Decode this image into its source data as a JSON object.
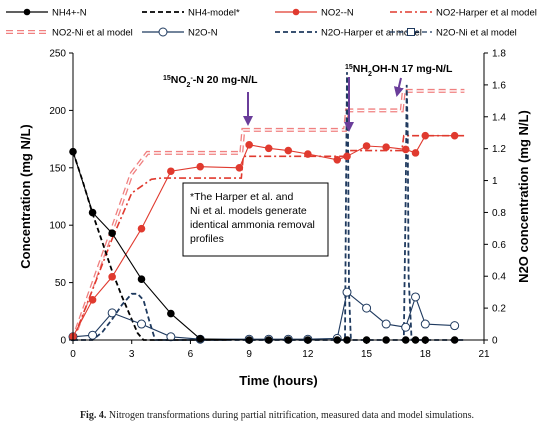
{
  "chart_data": {
    "type": "line",
    "xlabel": "Time (hours)",
    "ylabel": "Concentration (mg N/L)",
    "y2label": "N2O concentration (mg N/L)",
    "xlim": [
      0,
      21
    ],
    "ylim": [
      0,
      250
    ],
    "y2lim": [
      0,
      1.8
    ],
    "xticks": [
      0,
      3,
      6,
      9,
      12,
      15,
      18,
      21
    ],
    "yticks": [
      0,
      50,
      100,
      150,
      200,
      250
    ],
    "y2ticks": [
      0,
      0.2,
      0.4,
      0.6,
      0.8,
      1,
      1.2,
      1.4,
      1.6,
      1.8
    ],
    "y2ticklabels": [
      "0",
      "0.2",
      "0.4",
      "0.6",
      "0.8",
      "1",
      "1.2",
      "1.4",
      "1.6",
      "1.8"
    ],
    "legend_placement": "top",
    "annotations": {
      "no2_label_prefix": "15",
      "no2_label_main": "NO",
      "no2_label_sub": "2",
      "no2_label_sup": "-",
      "no2_label_rest": "-N 20 mg-N/L",
      "nh2oh_label_prefix": "15",
      "nh2oh_label_main": "NH",
      "nh2oh_label_sub": "2",
      "nh2oh_label_rest": "OH-N 17 mg-N/L",
      "note_lines": [
        "*The Harper et al. and",
        "Ni et al. models generate",
        "identical ammonia removal",
        "profiles"
      ]
    },
    "series": [
      {
        "name": "NH4+-N",
        "axis": "left",
        "style": "data-filled-circle",
        "color": "#000000",
        "x": [
          0,
          1,
          2,
          3.5,
          5,
          6.5,
          9,
          10,
          11,
          12,
          13.5,
          14,
          15,
          16,
          17,
          17.5,
          18,
          19.5
        ],
        "y": [
          164,
          111,
          93,
          53,
          23,
          1,
          0,
          0,
          0,
          0,
          0,
          0,
          0,
          0,
          0,
          0,
          0,
          0
        ]
      },
      {
        "name": "NH4-model*",
        "axis": "left",
        "style": "dash",
        "color": "#000000",
        "x": [
          0,
          0.5,
          1,
          1.5,
          2,
          2.5,
          3,
          3.3,
          3.6,
          4,
          5,
          6,
          8
        ],
        "y": [
          164,
          138,
          110,
          85,
          60,
          38,
          18,
          6,
          0,
          0,
          0,
          0,
          0
        ]
      },
      {
        "name": "NO2--N",
        "axis": "left",
        "style": "data-filled-circle",
        "color": "#e03a2f",
        "x": [
          0,
          1,
          2,
          3.5,
          5,
          6.5,
          8.5,
          9,
          10,
          11,
          12,
          13.5,
          14,
          15,
          16,
          17,
          17.5,
          18,
          19.5
        ],
        "y": [
          3,
          35,
          55,
          97,
          147,
          151,
          150,
          170,
          167,
          165,
          162,
          157,
          160,
          169,
          168,
          166,
          163,
          178,
          178
        ]
      },
      {
        "name": "NO2-Harper et al model",
        "axis": "left",
        "style": "dashdot",
        "color": "#e03a2f",
        "x": [
          0,
          1,
          2,
          3,
          4,
          4.5,
          8.6,
          8.7,
          13.9,
          14,
          16.8,
          16.9,
          20
        ],
        "y": [
          0,
          44,
          88,
          128,
          140,
          141,
          141,
          160,
          160,
          165,
          165,
          178,
          178
        ]
      },
      {
        "name": "NO2-Ni et al model",
        "axis": "left",
        "style": "double-dash",
        "color": "#f08080",
        "x": [
          0,
          1,
          2,
          3,
          3.8,
          4,
          8.6,
          8.7,
          13.9,
          14,
          16.8,
          16.9,
          20
        ],
        "y": [
          0,
          48,
          96,
          145,
          163,
          163,
          163,
          183,
          183,
          200,
          200,
          217,
          217
        ]
      },
      {
        "name": "N2O-N",
        "axis": "right",
        "style": "data-open-circle",
        "color": "#1f3a5f",
        "x": [
          0,
          1,
          2,
          3.5,
          5,
          6.5,
          9,
          10,
          11,
          12,
          13.5,
          14,
          15,
          16,
          17,
          17.5,
          18,
          19.5
        ],
        "y": [
          0.02,
          0.03,
          0.17,
          0.1,
          0.02,
          0.005,
          0.005,
          0.005,
          0.005,
          0.005,
          0.01,
          0.3,
          0.2,
          0.1,
          0.08,
          0.27,
          0.1,
          0.09
        ]
      },
      {
        "name": "N2O-Harper et al model",
        "axis": "right",
        "style": "dash",
        "color": "#1f3a5f",
        "x": [
          0,
          1,
          1.5,
          2,
          2.5,
          3,
          3.3,
          3.6,
          3.9,
          4.2,
          5,
          8,
          13.9,
          13.95,
          14.0,
          14.05,
          14.1,
          14.2,
          16.9,
          17.0,
          17.05,
          17.1,
          17.15,
          17.3,
          20
        ],
        "y": [
          0,
          0,
          0.05,
          0.13,
          0.22,
          0.29,
          0.29,
          0.25,
          0.12,
          0,
          0,
          0,
          0,
          0.9,
          1.68,
          1.3,
          0.3,
          0,
          0,
          0.9,
          1.6,
          1.3,
          0.4,
          0,
          0
        ]
      },
      {
        "name": "N2O-Ni et al model",
        "axis": "right",
        "style": "data-open-square",
        "color": "#1f3a5f",
        "x": [
          0,
          1,
          2,
          3,
          3.5,
          4,
          4.5,
          5,
          5.5,
          6,
          6.5,
          7,
          8,
          9,
          10,
          11,
          12,
          13,
          13.5,
          14,
          14.5,
          15,
          15.5,
          16,
          16.5,
          17,
          17.5,
          18,
          18.5,
          19,
          19.5,
          20
        ],
        "y": [
          0,
          0,
          0,
          0,
          0,
          0,
          0,
          0,
          0,
          0,
          0,
          0,
          0,
          0,
          0,
          0,
          0,
          0,
          0,
          0,
          0,
          0,
          0,
          0,
          0,
          0,
          0,
          0,
          0,
          0,
          0,
          0
        ]
      }
    ]
  },
  "caption": {
    "label": "Fig. 4.",
    "text": "Nitrogen transformations during partial nitrification, measured data and model simulations."
  }
}
